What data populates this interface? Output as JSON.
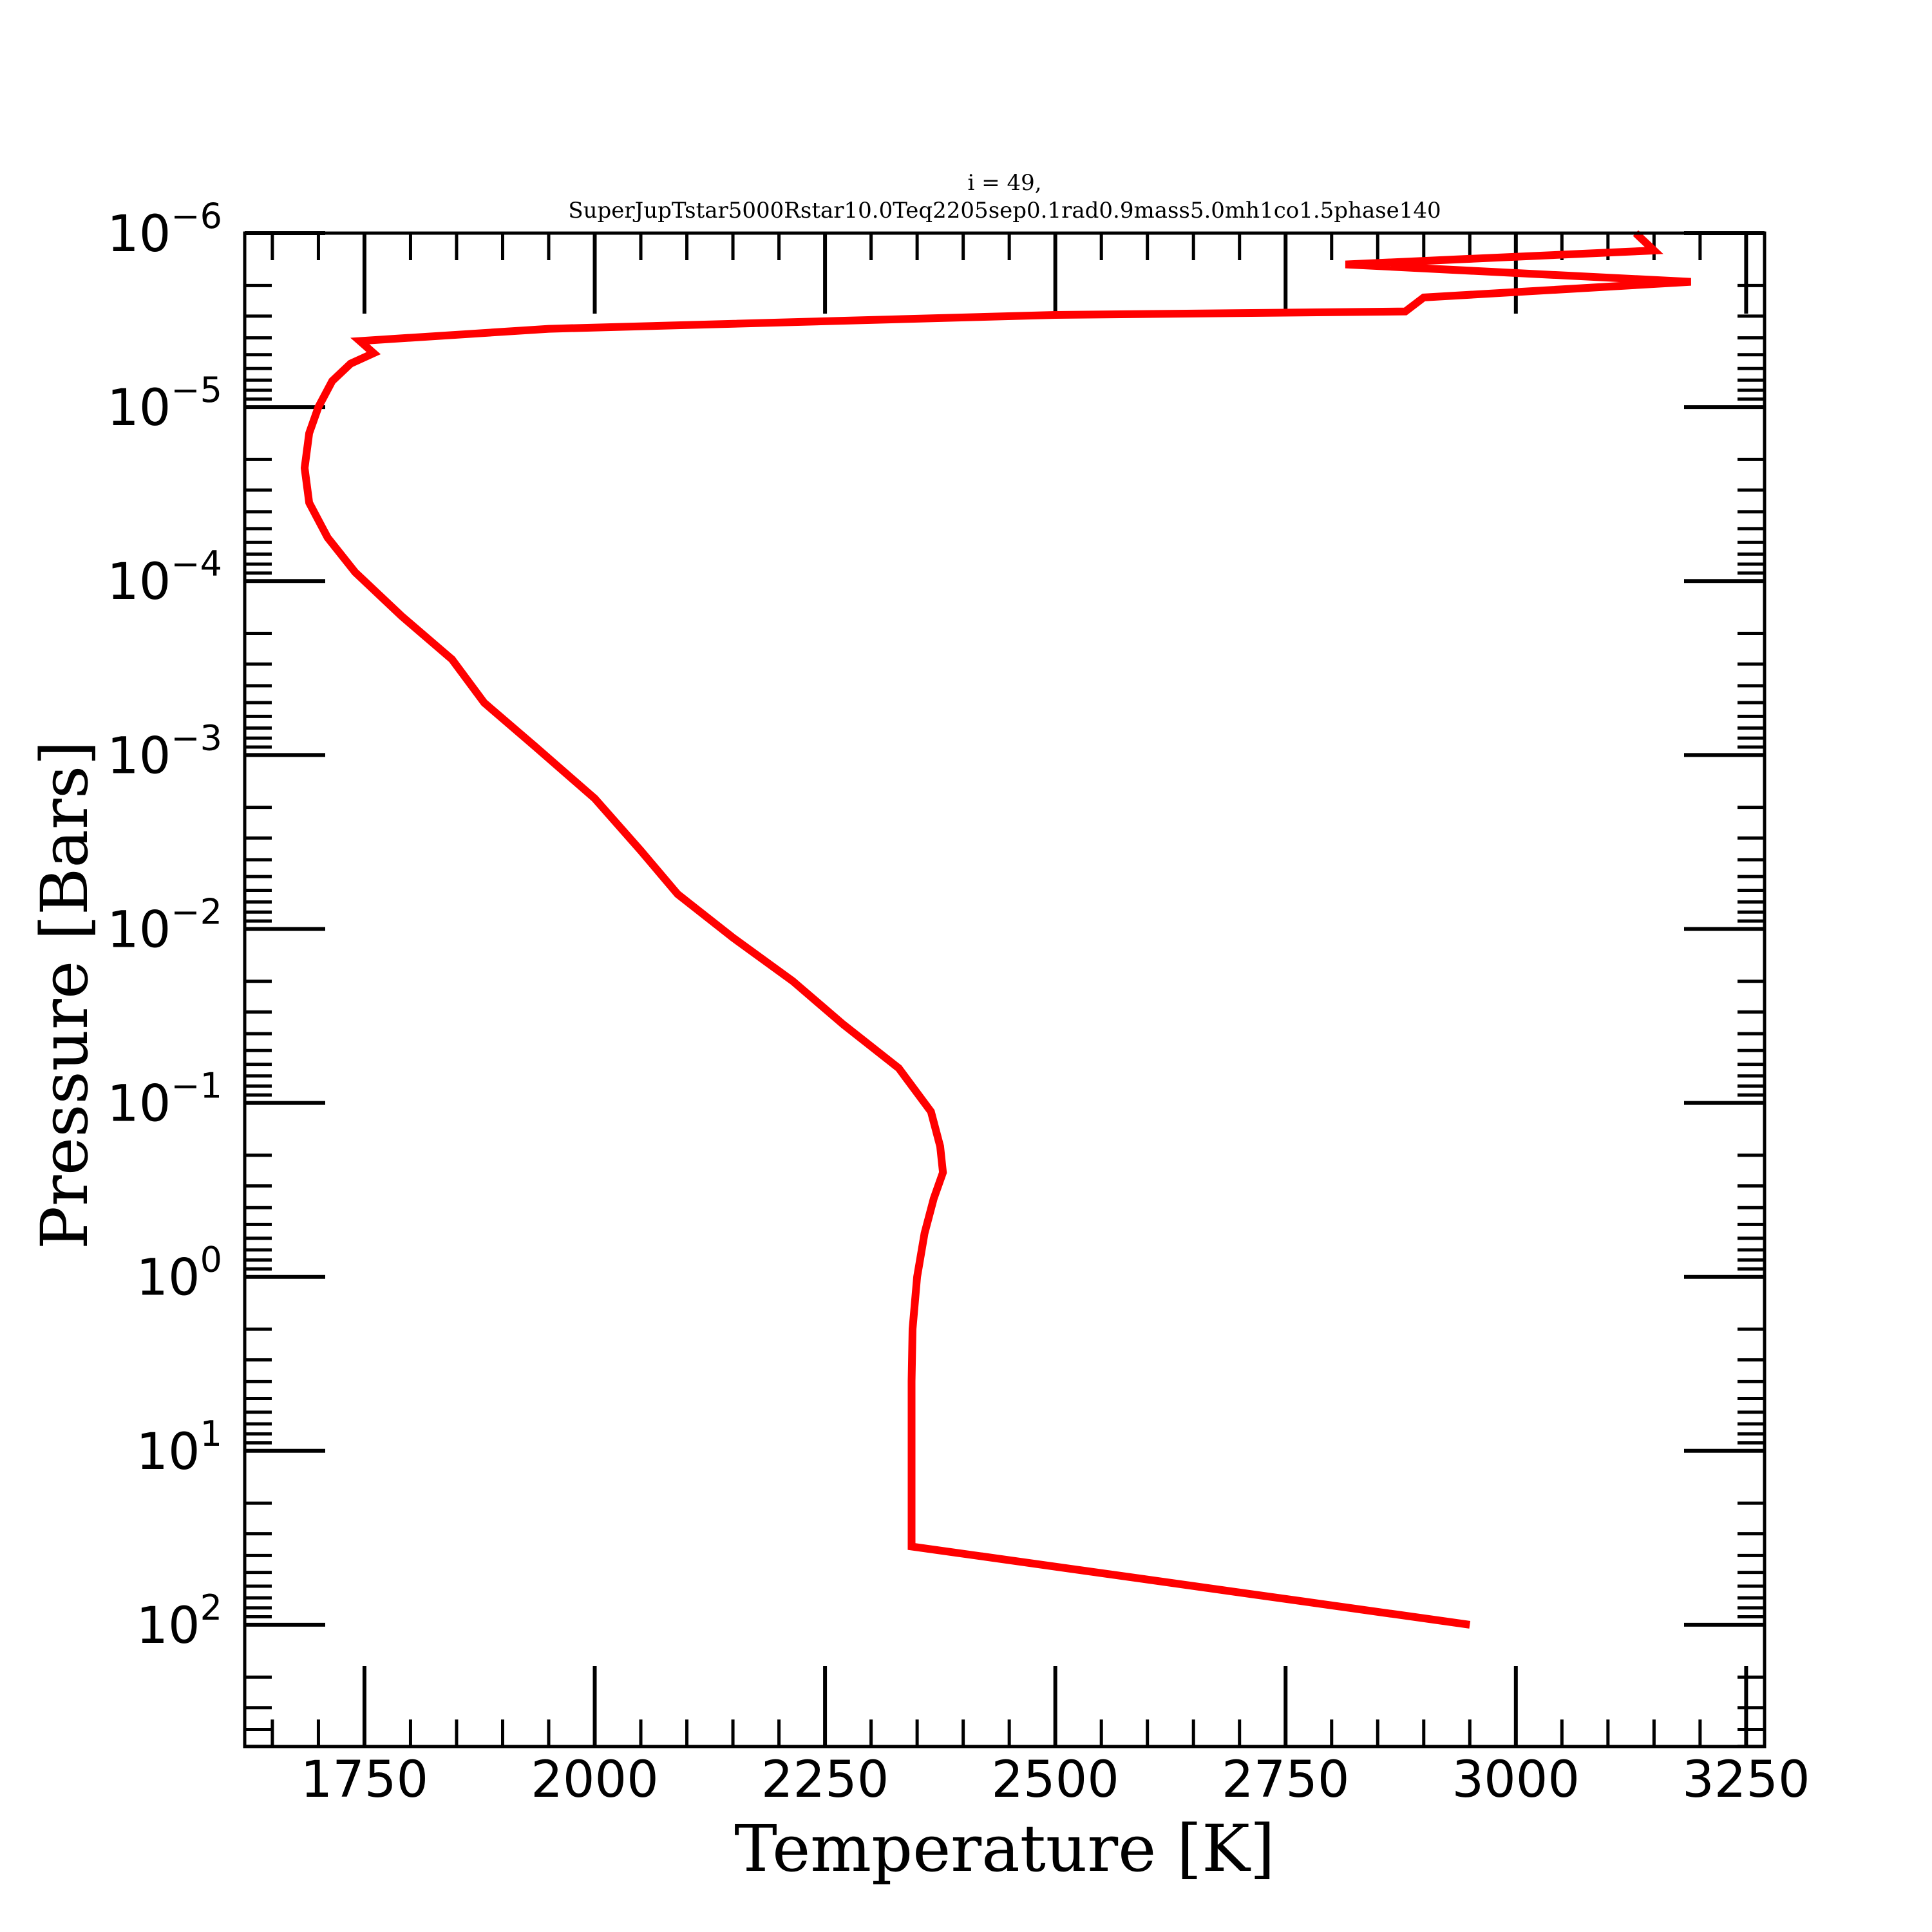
{
  "chart_data": {
    "type": "line",
    "title_line1": "i = 49,",
    "title_line2": "SuperJupTstar5000Rstar10.0Teq2205sep0.1rad0.9mass5.0mh1co1.5phase140",
    "xlabel": "Temperature [K]",
    "ylabel": "Pressure [Bars]",
    "xlim": [
      1620,
      3270
    ],
    "ylim_log10": [
      -6,
      2.7
    ],
    "y_scale": "log",
    "y_inverted": true,
    "grid": false,
    "x_ticks": [
      1750,
      2000,
      2250,
      2500,
      2750,
      3000,
      3250
    ],
    "x_tick_labels": [
      "1750",
      "2000",
      "2250",
      "2500",
      "2750",
      "3000",
      "3250"
    ],
    "y_ticks_log10": [
      -6,
      -5,
      -4,
      -3,
      -2,
      -1,
      0,
      1,
      2
    ],
    "y_tick_labels": [
      {
        "base": "10",
        "exp": "−6"
      },
      {
        "base": "10",
        "exp": "−5"
      },
      {
        "base": "10",
        "exp": "−4"
      },
      {
        "base": "10",
        "exp": "−3"
      },
      {
        "base": "10",
        "exp": "−2"
      },
      {
        "base": "10",
        "exp": "−1"
      },
      {
        "base": "10",
        "exp": "0"
      },
      {
        "base": "10",
        "exp": "1"
      },
      {
        "base": "10",
        "exp": "2"
      }
    ],
    "series": [
      {
        "color": "#ff0000",
        "points": [
          {
            "T": 3130,
            "logP": -6.0
          },
          {
            "T": 3150,
            "logP": -5.9
          },
          {
            "T": 2815,
            "logP": -5.82
          },
          {
            "T": 3190,
            "logP": -5.72
          },
          {
            "T": 2900,
            "logP": -5.63
          },
          {
            "T": 2880,
            "logP": -5.55
          },
          {
            "T": 2500,
            "logP": -5.53
          },
          {
            "T": 1950,
            "logP": -5.45
          },
          {
            "T": 1745,
            "logP": -5.38
          },
          {
            "T": 1760,
            "logP": -5.31
          },
          {
            "T": 1735,
            "logP": -5.25
          },
          {
            "T": 1715,
            "logP": -5.15
          },
          {
            "T": 1700,
            "logP": -5.0
          },
          {
            "T": 1690,
            "logP": -4.85
          },
          {
            "T": 1685,
            "logP": -4.65
          },
          {
            "T": 1690,
            "logP": -4.45
          },
          {
            "T": 1710,
            "logP": -4.25
          },
          {
            "T": 1740,
            "logP": -4.05
          },
          {
            "T": 1790,
            "logP": -3.8
          },
          {
            "T": 1845,
            "logP": -3.55
          },
          {
            "T": 1880,
            "logP": -3.3
          },
          {
            "T": 1935,
            "logP": -3.05
          },
          {
            "T": 2000,
            "logP": -2.75
          },
          {
            "T": 2050,
            "logP": -2.45
          },
          {
            "T": 2090,
            "logP": -2.2
          },
          {
            "T": 2150,
            "logP": -1.95
          },
          {
            "T": 2215,
            "logP": -1.7
          },
          {
            "T": 2270,
            "logP": -1.45
          },
          {
            "T": 2330,
            "logP": -1.2
          },
          {
            "T": 2365,
            "logP": -0.95
          },
          {
            "T": 2375,
            "logP": -0.75
          },
          {
            "T": 2378,
            "logP": -0.6
          },
          {
            "T": 2368,
            "logP": -0.45
          },
          {
            "T": 2358,
            "logP": -0.25
          },
          {
            "T": 2350,
            "logP": 0.0
          },
          {
            "T": 2345,
            "logP": 0.3
          },
          {
            "T": 2344,
            "logP": 0.6
          },
          {
            "T": 2344,
            "logP": 1.0
          },
          {
            "T": 2344,
            "logP": 1.55
          },
          {
            "T": 2950,
            "logP": 2.0
          }
        ]
      }
    ]
  }
}
